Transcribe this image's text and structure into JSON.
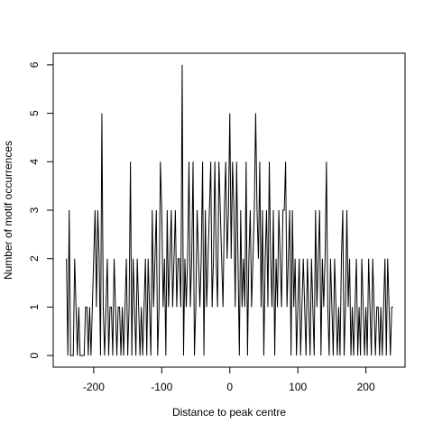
{
  "chart_data": {
    "type": "line",
    "xlabel": "Distance to peak centre",
    "ylabel": "Number of motif occurrences",
    "color": "#000000",
    "xlim": [
      -259.5,
      257.5
    ],
    "ylim": [
      -0.24,
      6.24
    ],
    "xticks": [
      -200,
      -100,
      0,
      100,
      200
    ],
    "yticks": [
      0,
      1,
      2,
      3,
      4,
      5,
      6
    ],
    "x": [
      -240,
      -238,
      -236,
      -234,
      -232,
      -230,
      -228,
      -226,
      -224,
      -222,
      -220,
      -218,
      -216,
      -214,
      -212,
      -210,
      -208,
      -206,
      -204,
      -202,
      -200,
      -198,
      -196,
      -194,
      -192,
      -190,
      -188,
      -186,
      -184,
      -182,
      -180,
      -178,
      -176,
      -174,
      -172,
      -170,
      -168,
      -166,
      -164,
      -162,
      -160,
      -158,
      -156,
      -154,
      -152,
      -150,
      -148,
      -146,
      -144,
      -142,
      -140,
      -138,
      -136,
      -134,
      -132,
      -130,
      -128,
      -126,
      -124,
      -122,
      -120,
      -118,
      -116,
      -114,
      -112,
      -110,
      -108,
      -106,
      -104,
      -102,
      -100,
      -98,
      -96,
      -94,
      -92,
      -90,
      -88,
      -86,
      -84,
      -82,
      -80,
      -78,
      -76,
      -74,
      -72,
      -70,
      -68,
      -66,
      -64,
      -62,
      -60,
      -58,
      -56,
      -54,
      -52,
      -50,
      -48,
      -46,
      -44,
      -42,
      -40,
      -38,
      -36,
      -34,
      -32,
      -30,
      -28,
      -26,
      -24,
      -22,
      -20,
      -18,
      -16,
      -14,
      -12,
      -10,
      -8,
      -6,
      -4,
      -2,
      0,
      2,
      4,
      6,
      8,
      10,
      12,
      14,
      16,
      18,
      20,
      22,
      24,
      26,
      28,
      30,
      32,
      34,
      36,
      38,
      40,
      42,
      44,
      46,
      48,
      50,
      52,
      54,
      56,
      58,
      60,
      62,
      64,
      66,
      68,
      70,
      72,
      74,
      76,
      78,
      80,
      82,
      84,
      86,
      88,
      90,
      92,
      94,
      96,
      98,
      100,
      102,
      104,
      106,
      108,
      110,
      112,
      114,
      116,
      118,
      120,
      122,
      124,
      126,
      128,
      130,
      132,
      134,
      136,
      138,
      140,
      142,
      144,
      146,
      148,
      150,
      152,
      154,
      156,
      158,
      160,
      162,
      164,
      166,
      168,
      170,
      172,
      174,
      176,
      178,
      180,
      182,
      184,
      186,
      188,
      190,
      192,
      194,
      196,
      198,
      200,
      202,
      204,
      206,
      208,
      210,
      212,
      214,
      216,
      218,
      220,
      222,
      224,
      226,
      228,
      230,
      232,
      234,
      236,
      238,
      240
    ],
    "values": [
      2,
      0,
      3,
      0,
      0,
      0,
      2,
      1,
      0,
      1,
      0,
      0,
      0,
      0,
      1,
      1,
      0,
      1,
      0,
      1,
      2,
      3,
      1,
      3,
      2,
      0,
      5,
      1,
      0,
      1,
      2,
      0,
      1,
      1,
      0,
      2,
      1,
      0,
      1,
      1,
      0,
      1,
      0,
      1,
      2,
      0,
      1,
      4,
      0,
      2,
      1,
      0,
      2,
      1,
      0,
      1,
      0,
      1,
      2,
      0,
      2,
      1,
      0,
      3,
      1,
      2,
      3,
      0,
      1,
      4,
      3,
      1,
      2,
      0,
      3,
      1,
      2,
      3,
      1,
      2,
      3,
      1,
      2,
      2,
      1,
      6,
      0,
      2,
      1,
      2,
      4,
      1,
      2,
      4,
      0,
      1,
      3,
      2,
      1,
      2,
      4,
      0,
      3,
      1,
      2,
      3,
      4,
      1,
      2,
      4,
      2,
      1,
      4,
      3,
      2,
      1,
      3,
      4,
      2,
      3,
      5,
      2,
      4,
      3,
      1,
      4,
      2,
      0,
      3,
      1,
      2,
      1,
      4,
      0,
      2,
      3,
      1,
      2,
      3,
      5,
      3,
      2,
      4,
      1,
      3,
      0,
      2,
      3,
      1,
      4,
      2,
      1,
      3,
      0,
      2,
      1,
      3,
      2,
      1,
      3,
      3,
      4,
      1,
      2,
      3,
      0,
      3,
      1,
      2,
      0,
      1,
      2,
      0,
      1,
      2,
      1,
      0,
      2,
      1,
      0,
      2,
      1,
      0,
      3,
      1,
      2,
      3,
      0,
      2,
      1,
      2,
      4,
      1,
      0,
      2,
      1,
      0,
      2,
      1,
      0,
      1,
      0,
      2,
      3,
      0,
      1,
      3,
      1,
      2,
      0,
      1,
      0,
      1,
      2,
      0,
      1,
      0,
      2,
      1,
      0,
      1,
      0,
      2,
      1,
      0,
      2,
      1,
      0,
      1,
      1,
      0,
      1,
      0,
      1,
      2,
      0,
      2,
      1,
      0,
      1,
      1
    ]
  }
}
